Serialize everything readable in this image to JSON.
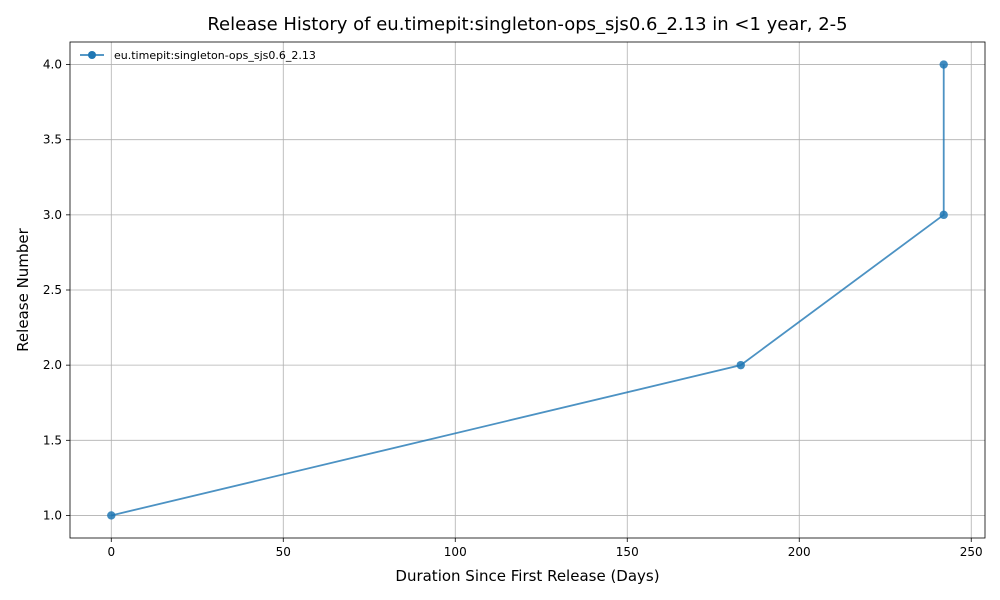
{
  "chart_data": {
    "type": "line",
    "title": "Release History of eu.timepit:singleton-ops_sjs0.6_2.13 in <1 year, 2-5",
    "xlabel": "Duration Since First Release (Days)",
    "ylabel": "Release Number",
    "xlim": [
      -12,
      254
    ],
    "ylim": [
      0.85,
      4.15
    ],
    "xticks": [
      0,
      50,
      100,
      150,
      200,
      250
    ],
    "yticks": [
      1.0,
      1.5,
      2.0,
      2.5,
      3.0,
      3.5,
      4.0
    ],
    "xtick_labels": [
      "0",
      "50",
      "100",
      "150",
      "200",
      "250"
    ],
    "ytick_labels": [
      "1.0",
      "1.5",
      "2.0",
      "2.5",
      "3.0",
      "3.5",
      "4.0"
    ],
    "grid": true,
    "legend_position": "top-left",
    "series": [
      {
        "name": "eu.timepit:singleton-ops_sjs0.6_2.13",
        "color": "#1f77b4",
        "x": [
          0,
          183,
          242,
          242
        ],
        "y": [
          1,
          2,
          3,
          4
        ]
      }
    ]
  }
}
